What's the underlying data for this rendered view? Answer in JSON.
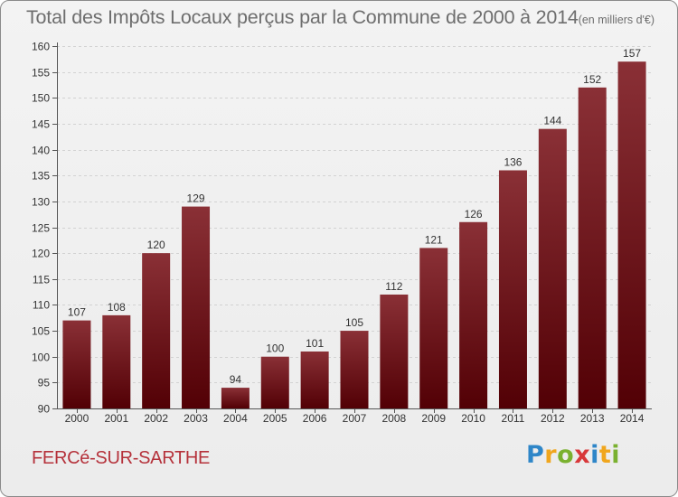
{
  "title": "Total des Impôts Locaux perçus par la Commune de 2000 à 2014",
  "unit": "(en milliers d'€)",
  "commune": "FERCé-SUR-SARTHE",
  "logo": {
    "letters": [
      "P",
      "r",
      "o",
      "x",
      "i",
      "t",
      "i"
    ]
  },
  "colors": {
    "bar_top": "#8a3036",
    "bar_bottom": "#520005",
    "text": "#6e6e6e",
    "commune": "#b5323b"
  },
  "chart_data": {
    "type": "bar",
    "categories": [
      "2000",
      "2001",
      "2002",
      "2003",
      "2004",
      "2005",
      "2006",
      "2007",
      "2008",
      "2009",
      "2010",
      "2011",
      "2012",
      "2013",
      "2014"
    ],
    "values": [
      107,
      108,
      120,
      129,
      94,
      100,
      101,
      105,
      112,
      121,
      126,
      136,
      144,
      152,
      157
    ],
    "title": "Total des Impôts Locaux perçus par la Commune de 2000 à 2014",
    "xlabel": "",
    "ylabel": "",
    "ylim": [
      90,
      160
    ],
    "yticks": [
      90,
      95,
      100,
      105,
      110,
      115,
      120,
      125,
      130,
      135,
      140,
      145,
      150,
      155,
      160
    ],
    "grid": true
  }
}
